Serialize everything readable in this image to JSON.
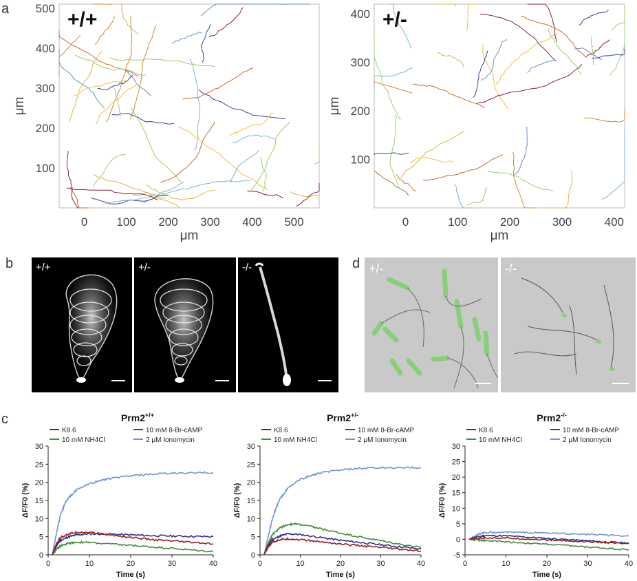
{
  "panel_labels": {
    "a": "a",
    "b": "b",
    "c": "c",
    "d": "d"
  },
  "panel_b": {
    "labels": [
      "+/+",
      "+/-",
      "-/-"
    ]
  },
  "panel_d": {
    "labels": [
      "+/-",
      "-/-"
    ]
  },
  "chart_data": [
    {
      "type": "line",
      "title": "+/+",
      "xlabel": "μm",
      "ylabel": "μm",
      "xlim": [
        -60,
        560
      ],
      "ylim": [
        0,
        510
      ],
      "xticks": [
        "0",
        "100",
        "200",
        "300",
        "400",
        "500"
      ],
      "yticks": [
        "100",
        "200",
        "300",
        "400",
        "500"
      ]
    },
    {
      "type": "line",
      "title": "+/-",
      "xlabel": "μm",
      "ylabel": "μm",
      "xlim": [
        -60,
        420
      ],
      "ylim": [
        0,
        420
      ],
      "xticks": [
        "0",
        "100",
        "200",
        "300",
        "400"
      ],
      "yticks": [
        "100",
        "200",
        "300",
        "400"
      ]
    },
    {
      "type": "line",
      "title_base": "Prm2",
      "title_sup": "+/+",
      "xlabel": "Time (s)",
      "ylabel": "ΔF/F0 (%)",
      "xlim": [
        0,
        40
      ],
      "ylim": [
        0,
        30
      ],
      "xticks": [
        "0",
        "10",
        "20",
        "30",
        "40"
      ],
      "yticks": [
        "0",
        "5",
        "10",
        "15",
        "20",
        "25",
        "30"
      ],
      "series": [
        {
          "name": "K8.6",
          "color": "#2b2f8f",
          "x": [
            1,
            2,
            3,
            5,
            7,
            10,
            15,
            20,
            25,
            30,
            35,
            40
          ],
          "values": [
            0,
            2.5,
            4.0,
            5.0,
            5.5,
            5.8,
            5.7,
            5.5,
            5.3,
            5.2,
            5.1,
            5.0
          ]
        },
        {
          "name": "10 mM 8-Br-cAMP",
          "color": "#9b1b1b",
          "x": [
            1,
            2,
            3,
            5,
            7,
            10,
            15,
            20,
            25,
            30,
            35,
            40
          ],
          "values": [
            0,
            3.0,
            4.8,
            5.8,
            6.2,
            6.2,
            5.5,
            4.8,
            4.2,
            3.8,
            3.4,
            3.0
          ]
        },
        {
          "name": "10 mM NH4Cl",
          "color": "#3f8f3a",
          "x": [
            1,
            2,
            3,
            5,
            7,
            10,
            15,
            20,
            25,
            30,
            35,
            40
          ],
          "values": [
            0,
            1.5,
            2.5,
            3.2,
            3.5,
            3.4,
            3.0,
            2.6,
            2.2,
            1.8,
            1.3,
            0.9
          ]
        },
        {
          "name": "2 μM Ionomycin",
          "color": "#6f96cf",
          "x": [
            1,
            2,
            3,
            4,
            5,
            7,
            10,
            13,
            16,
            20,
            25,
            30,
            35,
            40
          ],
          "values": [
            0,
            6.0,
            11.0,
            14.0,
            15.8,
            18.0,
            19.6,
            20.6,
            21.2,
            21.8,
            22.2,
            22.5,
            22.6,
            22.7
          ]
        }
      ]
    },
    {
      "type": "line",
      "title_base": "Prm2",
      "title_sup": "+/-",
      "xlabel": "Time (s)",
      "ylabel": "ΔF/F0 (%)",
      "xlim": [
        0,
        40
      ],
      "ylim": [
        0,
        30
      ],
      "xticks": [
        "0",
        "10",
        "20",
        "30",
        "40"
      ],
      "yticks": [
        "0",
        "5",
        "10",
        "15",
        "20",
        "25",
        "30"
      ],
      "series": [
        {
          "name": "K8.6",
          "color": "#2b2f8f",
          "x": [
            1,
            2,
            3,
            5,
            7,
            10,
            15,
            20,
            25,
            30,
            35,
            40
          ],
          "values": [
            0,
            2.5,
            4.2,
            5.2,
            5.8,
            5.6,
            4.8,
            4.0,
            3.4,
            2.8,
            2.2,
            1.6
          ]
        },
        {
          "name": "10 mM 8-Br-cAMP",
          "color": "#9b1b1b",
          "x": [
            1,
            2,
            3,
            5,
            7,
            10,
            15,
            20,
            25,
            30,
            35,
            40
          ],
          "values": [
            0,
            2.0,
            3.5,
            4.2,
            4.4,
            4.2,
            3.6,
            3.0,
            2.5,
            2.0,
            1.5,
            1.0
          ]
        },
        {
          "name": "10 mM NH4Cl",
          "color": "#3f8f3a",
          "x": [
            1,
            2,
            3,
            5,
            7,
            9,
            12,
            15,
            20,
            25,
            30,
            35,
            40
          ],
          "values": [
            0,
            3.0,
            5.5,
            7.5,
            8.4,
            8.5,
            8.0,
            7.2,
            6.0,
            4.9,
            3.9,
            2.9,
            2.0
          ]
        },
        {
          "name": "2 μM Ionomycin",
          "color": "#6f96cf",
          "x": [
            1,
            2,
            3,
            4,
            5,
            7,
            10,
            13,
            16,
            20,
            25,
            30,
            35,
            40
          ],
          "values": [
            0,
            5.0,
            9.5,
            13.0,
            15.5,
            18.5,
            20.8,
            22.0,
            22.8,
            23.4,
            23.8,
            24.0,
            24.0,
            24.1
          ]
        }
      ]
    },
    {
      "type": "line",
      "title_base": "Prm2",
      "title_sup": "-/-",
      "xlabel": "Time (s)",
      "ylabel": "ΔF/F0 (%)",
      "xlim": [
        0,
        40
      ],
      "ylim": [
        -5,
        30
      ],
      "xticks": [
        "0",
        "10",
        "20",
        "30",
        "40"
      ],
      "yticks": [
        "-5",
        "0",
        "5",
        "10",
        "15",
        "20",
        "25",
        "30"
      ],
      "series": [
        {
          "name": "K8.6",
          "color": "#2b2f8f",
          "x": [
            1,
            3,
            5,
            10,
            15,
            20,
            25,
            30,
            35,
            40
          ],
          "values": [
            0,
            0.8,
            1.2,
            1.1,
            0.7,
            0.3,
            -0.1,
            -0.5,
            -0.9,
            -1.2
          ]
        },
        {
          "name": "10 mM 8-Br-cAMP",
          "color": "#9b1b1b",
          "x": [
            1,
            3,
            5,
            10,
            15,
            20,
            25,
            30,
            35,
            40
          ],
          "values": [
            0,
            0.3,
            0.5,
            0.4,
            0.1,
            -0.2,
            -0.5,
            -0.8,
            -1.1,
            -1.5
          ]
        },
        {
          "name": "10 mM NH4Cl",
          "color": "#3f8f3a",
          "x": [
            1,
            3,
            5,
            10,
            15,
            20,
            25,
            30,
            35,
            40
          ],
          "values": [
            0,
            -0.2,
            -0.4,
            -0.8,
            -1.2,
            -1.6,
            -2.0,
            -2.5,
            -2.9,
            -3.4
          ]
        },
        {
          "name": "2 μM Ionomycin",
          "color": "#6f96cf",
          "x": [
            1,
            3,
            5,
            10,
            15,
            20,
            25,
            30,
            35,
            40
          ],
          "values": [
            0,
            1.6,
            2.1,
            2.3,
            2.2,
            2.0,
            1.8,
            1.6,
            1.3,
            1.0
          ]
        }
      ]
    }
  ]
}
